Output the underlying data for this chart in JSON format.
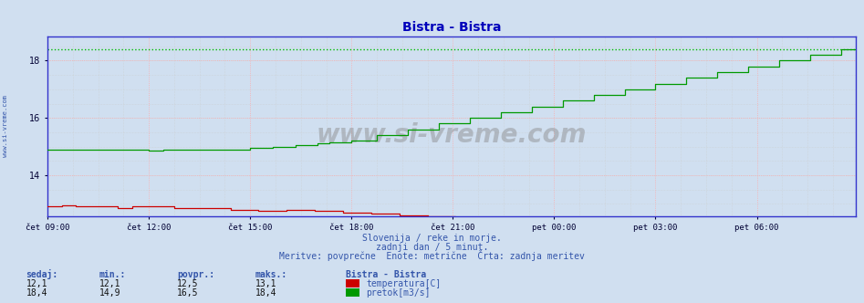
{
  "title": "Bistra - Bistra",
  "title_color": "#0000bb",
  "bg_color": "#d0dff0",
  "plot_bg_color": "#d0dff0",
  "grid_color_h": "#ffaaaa",
  "grid_color_v": "#ffaaaa",
  "grid_minor_color": "#cccccc",
  "border_color": "#3333cc",
  "x_tick_labels": [
    "čet 09:00",
    "čet 12:00",
    "čet 15:00",
    "čet 18:00",
    "čet 21:00",
    "pet 00:00",
    "pet 03:00",
    "pet 06:00"
  ],
  "x_tick_positions": [
    0,
    36,
    72,
    108,
    144,
    180,
    216,
    252
  ],
  "total_points": 288,
  "ylim_min": 12.55,
  "ylim_max": 18.85,
  "yticks": [
    14,
    16,
    18
  ],
  "temp_color": "#cc0000",
  "flow_color": "#009900",
  "flow_dotted_color": "#00bb00",
  "watermark": "www.si-vreme.com",
  "subtitle1": "Slovenija / reke in morje.",
  "subtitle2": "zadnji dan / 5 minut.",
  "subtitle3": "Meritve: povprečne  Enote: metrične  Črta: zadnja meritev",
  "subtitle_color": "#3355aa",
  "label_color": "#3355aa",
  "tick_color": "#000033",
  "left_label": "www.si-vreme.com",
  "table_headers": [
    "sedaj:",
    "min.:",
    "povpr.:",
    "maks.:"
  ],
  "table_row1": [
    "12,1",
    "12,1",
    "12,5",
    "13,1"
  ],
  "table_row2": [
    "18,4",
    "14,9",
    "16,5",
    "18,4"
  ],
  "legend_title": "Bistra - Bistra",
  "legend_label1": "temperatura[C]",
  "legend_label2": "pretok[m3/s]"
}
